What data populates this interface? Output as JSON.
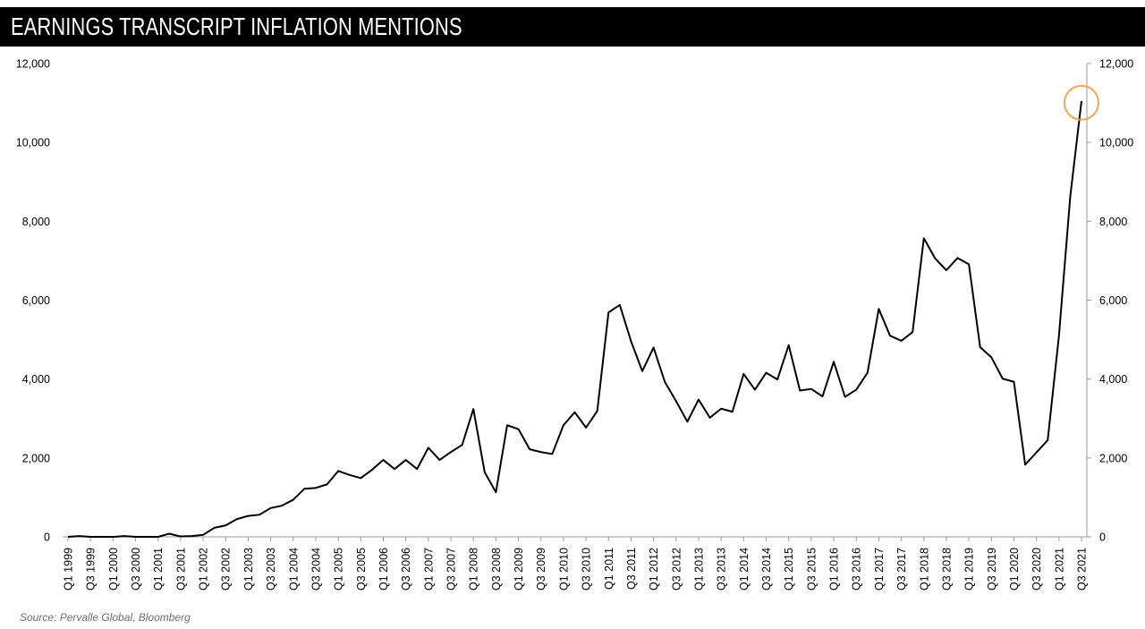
{
  "header": {
    "title": "EARNINGS TRANSCRIPT INFLATION MENTIONS"
  },
  "source": "Source: Pervalle Global, Bloomberg",
  "chart_data": {
    "type": "line",
    "title": "EARNINGS TRANSCRIPT INFLATION MENTIONS",
    "xlabel": "",
    "ylabel": "",
    "ylim": [
      0,
      12000
    ],
    "y_ticks": [
      0,
      2000,
      4000,
      6000,
      8000,
      10000,
      12000
    ],
    "y_tick_labels": [
      "0",
      "2,000",
      "4,000",
      "6,000",
      "8,000",
      "10,000",
      "12,000"
    ],
    "y_axes": [
      "left",
      "right"
    ],
    "grid": false,
    "legend": "none",
    "line_color": "#000000",
    "highlight": {
      "shape": "circle",
      "color": "#f0a04b",
      "category": "Q3 2021"
    },
    "categories": [
      "Q1 1999",
      "Q2 1999",
      "Q3 1999",
      "Q4 1999",
      "Q1 2000",
      "Q2 2000",
      "Q3 2000",
      "Q4 2000",
      "Q1 2001",
      "Q2 2001",
      "Q3 2001",
      "Q4 2001",
      "Q1 2002",
      "Q2 2002",
      "Q3 2002",
      "Q4 2002",
      "Q1 2003",
      "Q2 2003",
      "Q3 2003",
      "Q4 2003",
      "Q1 2004",
      "Q2 2004",
      "Q3 2004",
      "Q4 2004",
      "Q1 2005",
      "Q2 2005",
      "Q3 2005",
      "Q4 2005",
      "Q1 2006",
      "Q2 2006",
      "Q3 2006",
      "Q4 2006",
      "Q1 2007",
      "Q2 2007",
      "Q3 2007",
      "Q4 2007",
      "Q1 2008",
      "Q2 2008",
      "Q3 2008",
      "Q4 2008",
      "Q1 2009",
      "Q2 2009",
      "Q3 2009",
      "Q4 2009",
      "Q1 2010",
      "Q2 2010",
      "Q3 2010",
      "Q4 2010",
      "Q1 2011",
      "Q2 2011",
      "Q3 2011",
      "Q4 2011",
      "Q1 2012",
      "Q2 2012",
      "Q3 2012",
      "Q4 2012",
      "Q1 2013",
      "Q2 2013",
      "Q3 2013",
      "Q4 2013",
      "Q1 2014",
      "Q2 2014",
      "Q3 2014",
      "Q4 2014",
      "Q1 2015",
      "Q2 2015",
      "Q3 2015",
      "Q4 2015",
      "Q1 2016",
      "Q2 2016",
      "Q3 2016",
      "Q4 2016",
      "Q1 2017",
      "Q2 2017",
      "Q3 2017",
      "Q4 2017",
      "Q1 2018",
      "Q2 2018",
      "Q3 2018",
      "Q4 2018",
      "Q1 2019",
      "Q2 2019",
      "Q3 2019",
      "Q4 2019",
      "Q1 2020",
      "Q2 2020",
      "Q3 2020",
      "Q4 2020",
      "Q1 2021",
      "Q2 2021",
      "Q3 2021"
    ],
    "tick_label_every": 2,
    "values": [
      0,
      20,
      0,
      0,
      0,
      20,
      0,
      0,
      0,
      80,
      10,
      20,
      50,
      230,
      290,
      450,
      530,
      560,
      730,
      790,
      940,
      1220,
      1240,
      1330,
      1670,
      1570,
      1490,
      1700,
      1950,
      1720,
      1950,
      1720,
      2260,
      1950,
      2150,
      2330,
      3240,
      1640,
      1130,
      2830,
      2730,
      2220,
      2150,
      2100,
      2830,
      3160,
      2770,
      3190,
      5690,
      5880,
      4960,
      4200,
      4800,
      3930,
      3440,
      2920,
      3480,
      3020,
      3250,
      3170,
      4130,
      3730,
      4160,
      3990,
      4860,
      3710,
      3750,
      3560,
      4440,
      3550,
      3730,
      4160,
      5780,
      5100,
      4970,
      5190,
      7570,
      7060,
      6760,
      7070,
      6910,
      4810,
      4550,
      4010,
      3930,
      1830,
      2140,
      2450,
      5100,
      8620,
      11050
    ]
  }
}
